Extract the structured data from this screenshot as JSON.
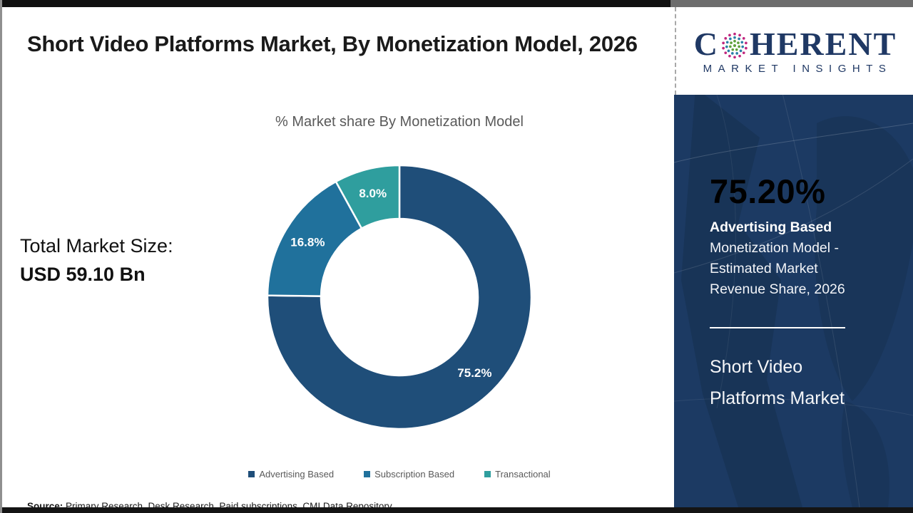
{
  "header": {
    "title": "Short Video Platforms Market, By Monetization Model, 2026"
  },
  "logo": {
    "word_start": "C",
    "word_end": "HERENT",
    "subtitle": "MARKET INSIGHTS",
    "navy": "#1F3864",
    "globe_colors": {
      "outer": "#C0267E",
      "middle": "#2B7FA8",
      "inner": "#5FA13B"
    }
  },
  "total_market": {
    "label": "Total Market Size:",
    "value": "USD 59.10 Bn"
  },
  "chart_data": {
    "type": "pie",
    "donut": true,
    "title": "% Market share By Monetization Model",
    "categories": [
      "Advertising Based",
      "Subscription Based",
      "Transactional"
    ],
    "values": [
      75.2,
      16.8,
      8.0
    ],
    "labels": [
      "75.2%",
      "16.8%",
      "8.0%"
    ],
    "colors": [
      "#1F4E79",
      "#20719C",
      "#2F9E9E"
    ],
    "start_angle_deg": 0,
    "direction": "clockwise",
    "legend_position": "bottom",
    "label_color": "#ffffff"
  },
  "sidebar": {
    "bg": "#1C3A63",
    "highlight_value": "75.20%",
    "highlight_bold": "Advertising Based",
    "highlight_text": "Monetization Model - Estimated Market Revenue Share, 2026",
    "product_name": "Short Video Platforms Market"
  },
  "footer": {
    "source_label": "Source:",
    "source_text": " Primary Research, Desk Research, Paid subscriptions, CMI Data Repository"
  }
}
